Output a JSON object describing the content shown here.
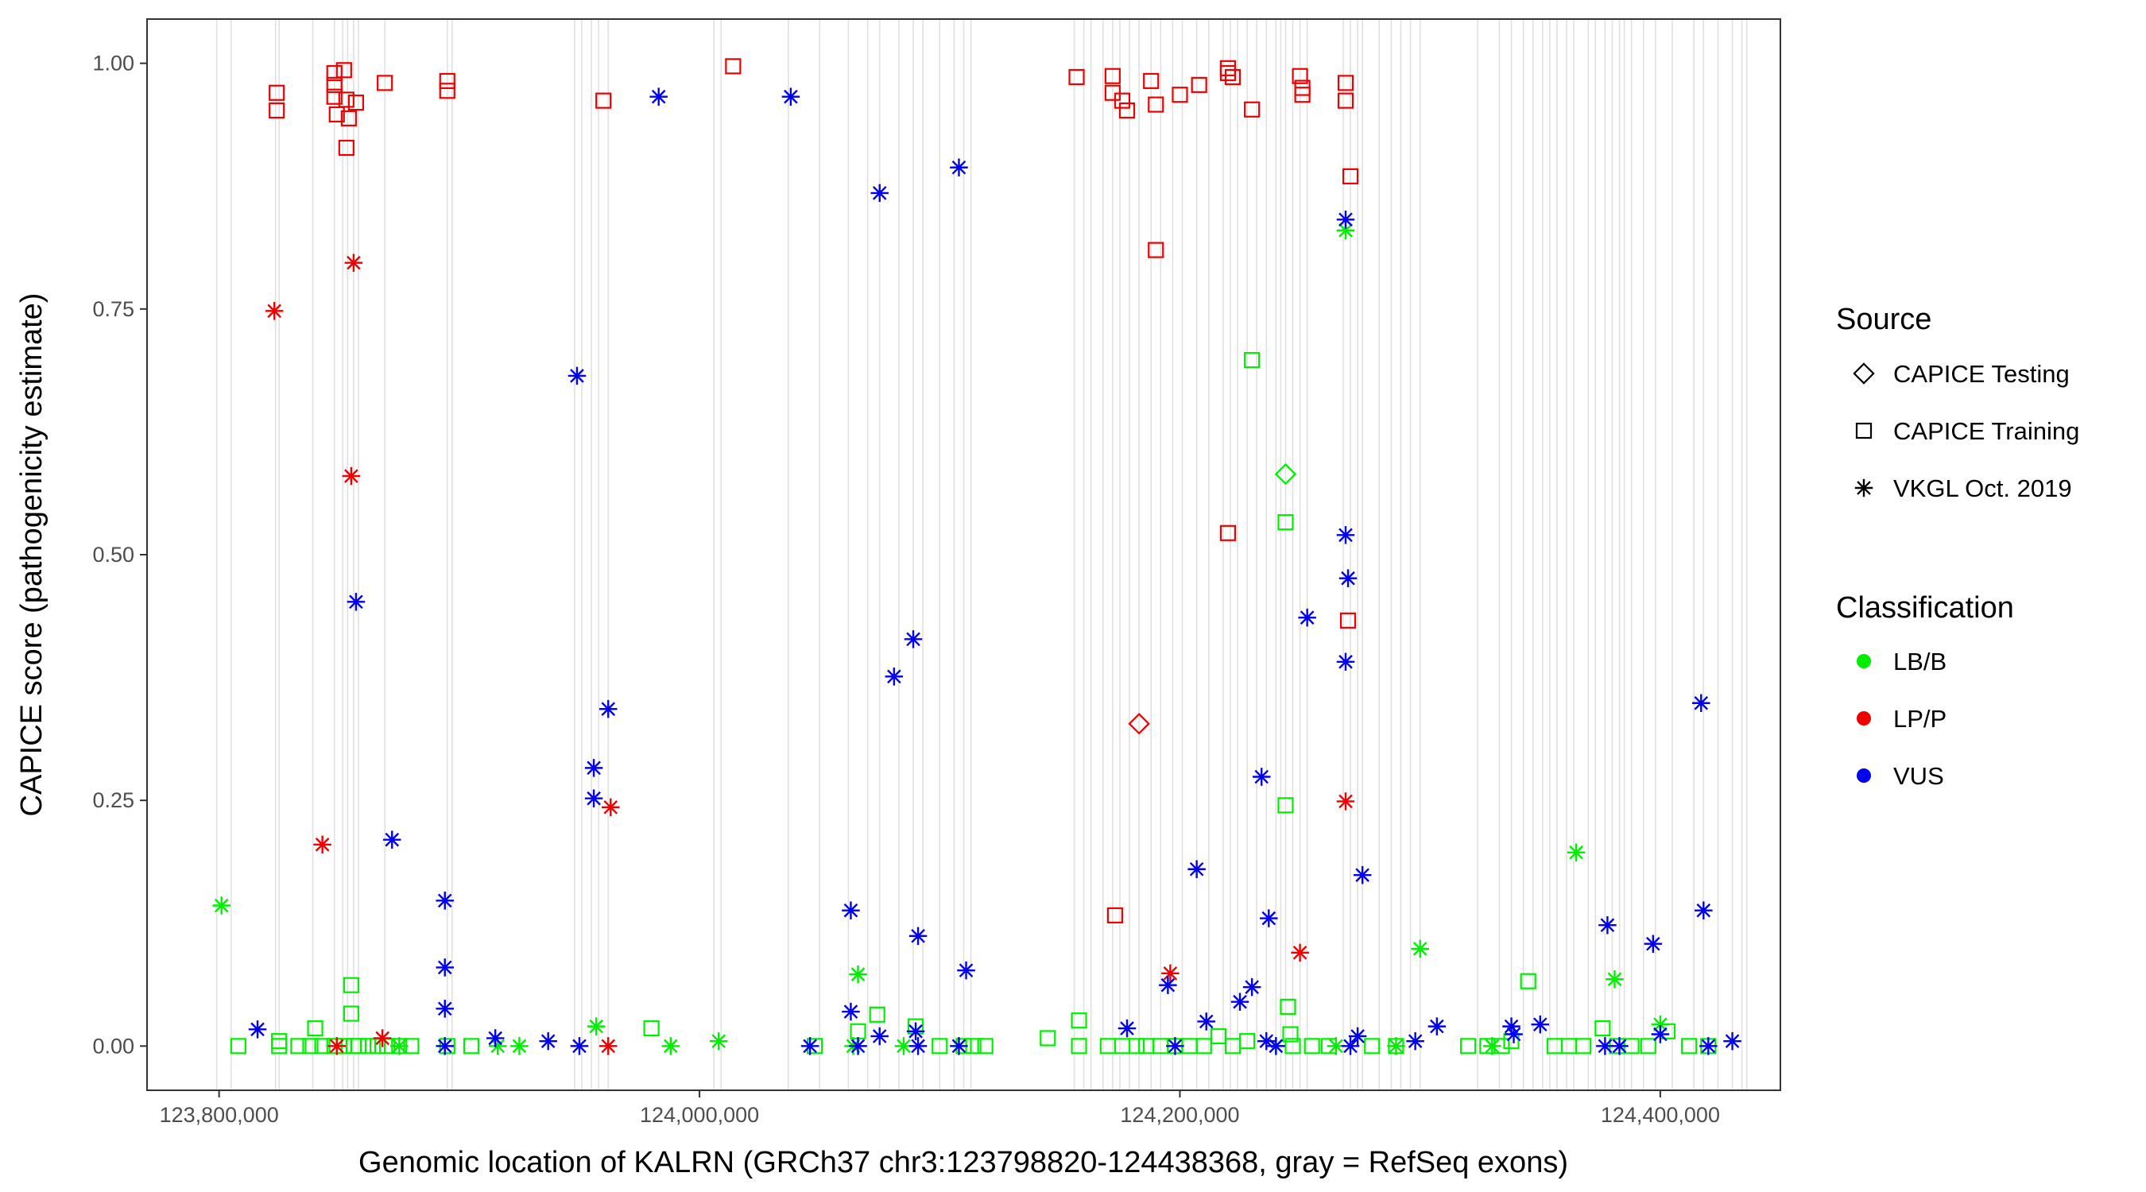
{
  "chart_data": {
    "type": "scatter",
    "title": "",
    "xlabel": "Genomic location of KALRN (GRCh37 chr3:123798820-124438368, gray = RefSeq exons)",
    "ylabel": "CAPICE score (pathogenicity estimate)",
    "xlim": [
      123770000,
      124450000
    ],
    "ylim": [
      -0.045,
      1.045
    ],
    "x_ticks": [
      123800000,
      124000000,
      124200000,
      124400000
    ],
    "x_tick_labels": [
      "123,800,000",
      "124,000,000",
      "124,200,000",
      "124,400,000"
    ],
    "y_ticks": [
      0,
      0.25,
      0.5,
      0.75,
      1.0
    ],
    "y_tick_labels": [
      "0.00",
      "0.25",
      "0.50",
      "0.75",
      "1.00"
    ],
    "grid": false,
    "exon_positions": [
      123799000,
      123805000,
      123823500,
      123825000,
      123839000,
      123848000,
      123851500,
      123853500,
      123856000,
      123858000,
      123869000,
      123895000,
      123897000,
      123948000,
      123951000,
      123955000,
      123958000,
      123962000,
      124006000,
      124009000,
      124037000,
      124050000,
      124062000,
      124070000,
      124075000,
      124083000,
      124089000,
      124093000,
      124100000,
      124106000,
      124110000,
      124113000,
      124156000,
      124160000,
      124163000,
      124168000,
      124172000,
      124175000,
      124179000,
      124183000,
      124188000,
      124192000,
      124197000,
      124201000,
      124207000,
      124212000,
      124218000,
      124221000,
      124224000,
      124228000,
      124232000,
      124236000,
      124240000,
      124242000,
      124244000,
      124247000,
      124250000,
      124253000,
      124268000,
      124271000,
      124274000,
      124276000,
      124283000,
      124288000,
      124292000,
      124296000,
      124300000,
      124324000,
      124333000,
      124338000,
      124343000,
      124347000,
      124351000,
      124354000,
      124357000,
      124361000,
      124364000,
      124370000,
      124373000,
      124377000,
      124380000,
      124383000,
      124385000,
      124388000,
      124393000,
      124398000,
      124405000,
      124414000,
      124418000,
      124424000,
      124430000,
      124434000,
      124436000
    ],
    "exon_color": "#e0e0e0",
    "legend": {
      "position": "right",
      "source_title": "Source",
      "source_items": [
        {
          "label": "CAPICE Testing",
          "shape": "diamond"
        },
        {
          "label": "CAPICE Training",
          "shape": "square"
        },
        {
          "label": "VKGL Oct. 2019",
          "shape": "asterisk"
        }
      ],
      "class_title": "Classification",
      "class_items": [
        {
          "label": "LB/B",
          "color": "#00ee00"
        },
        {
          "label": "LP/P",
          "color": "#ee0000"
        },
        {
          "label": "VUS",
          "color": "#0000ee"
        }
      ]
    },
    "series": [
      {
        "source": "CAPICE Training",
        "classification": "LP/P",
        "shape": "square",
        "color": "#ee0000",
        "points": [
          [
            123824000,
            0.97
          ],
          [
            123824000,
            0.952
          ],
          [
            123848000,
            0.99
          ],
          [
            123848000,
            0.978
          ],
          [
            123848000,
            0.966
          ],
          [
            123849000,
            0.948
          ],
          [
            123852000,
            0.993
          ],
          [
            123853000,
            0.963
          ],
          [
            123854000,
            0.944
          ],
          [
            123853000,
            0.914
          ],
          [
            123857000,
            0.96
          ],
          [
            123869000,
            0.98
          ],
          [
            123895000,
            0.982
          ],
          [
            123895000,
            0.972
          ],
          [
            123960000,
            0.962
          ],
          [
            124014000,
            0.997
          ],
          [
            124157000,
            0.986
          ],
          [
            124172000,
            0.987
          ],
          [
            124172000,
            0.97
          ],
          [
            124176000,
            0.962
          ],
          [
            124178000,
            0.952
          ],
          [
            124188000,
            0.982
          ],
          [
            124190000,
            0.958
          ],
          [
            124200000,
            0.968
          ],
          [
            124208000,
            0.978
          ],
          [
            124220000,
            0.995
          ],
          [
            124220000,
            0.99
          ],
          [
            124222000,
            0.986
          ],
          [
            124230000,
            0.953
          ],
          [
            124250000,
            0.987
          ],
          [
            124251000,
            0.975
          ],
          [
            124251000,
            0.968
          ],
          [
            124269000,
            0.98
          ],
          [
            124269000,
            0.962
          ],
          [
            124271000,
            0.885
          ],
          [
            124190000,
            0.81
          ],
          [
            124220000,
            0.522
          ],
          [
            124270000,
            0.433
          ],
          [
            124173000,
            0.133
          ]
        ]
      },
      {
        "source": "CAPICE Training",
        "classification": "LB/B",
        "shape": "square",
        "color": "#00ee00",
        "points": [
          [
            123808000,
            0.0
          ],
          [
            123825000,
            0.0
          ],
          [
            123825000,
            0.005
          ],
          [
            123833000,
            0.0
          ],
          [
            123838000,
            0.0
          ],
          [
            123840000,
            0.018
          ],
          [
            123843000,
            0.0
          ],
          [
            123848000,
            0.0
          ],
          [
            123852000,
            0.0
          ],
          [
            123855000,
            0.062
          ],
          [
            123855000,
            0.033
          ],
          [
            123856000,
            0.0
          ],
          [
            123858000,
            0.0
          ],
          [
            123862000,
            0.0
          ],
          [
            123866000,
            0.0
          ],
          [
            123870000,
            0.0
          ],
          [
            123875000,
            0.0
          ],
          [
            123880000,
            0.0
          ],
          [
            123895000,
            0.0
          ],
          [
            123905000,
            0.0
          ],
          [
            123980000,
            0.018
          ],
          [
            124048000,
            0.0
          ],
          [
            124066000,
            0.015
          ],
          [
            124074000,
            0.032
          ],
          [
            124090000,
            0.02
          ],
          [
            124100000,
            0.0
          ],
          [
            124110000,
            0.0
          ],
          [
            124114000,
            0.0
          ],
          [
            124119000,
            0.0
          ],
          [
            124145000,
            0.008
          ],
          [
            124158000,
            0.026
          ],
          [
            124158000,
            0.0
          ],
          [
            124170000,
            0.0
          ],
          [
            124176000,
            0.0
          ],
          [
            124182000,
            0.0
          ],
          [
            124186000,
            0.0
          ],
          [
            124192000,
            0.0
          ],
          [
            124198000,
            0.0
          ],
          [
            124204000,
            0.0
          ],
          [
            124210000,
            0.0
          ],
          [
            124216000,
            0.01
          ],
          [
            124222000,
            0.0
          ],
          [
            124228000,
            0.005
          ],
          [
            124230000,
            0.698
          ],
          [
            124244000,
            0.533
          ],
          [
            124244000,
            0.245
          ],
          [
            124245000,
            0.04
          ],
          [
            124246000,
            0.012
          ],
          [
            124247000,
            0.0
          ],
          [
            124255000,
            0.0
          ],
          [
            124262000,
            0.0
          ],
          [
            124280000,
            0.0
          ],
          [
            124290000,
            0.0
          ],
          [
            124320000,
            0.0
          ],
          [
            124328000,
            0.0
          ],
          [
            124334000,
            0.0
          ],
          [
            124338000,
            0.005
          ],
          [
            124345000,
            0.066
          ],
          [
            124356000,
            0.0
          ],
          [
            124362000,
            0.0
          ],
          [
            124368000,
            0.0
          ],
          [
            124376000,
            0.018
          ],
          [
            124382000,
            0.0
          ],
          [
            124388000,
            0.0
          ],
          [
            124395000,
            0.0
          ],
          [
            124403000,
            0.015
          ],
          [
            124412000,
            0.0
          ],
          [
            124420000,
            0.0
          ]
        ]
      },
      {
        "source": "CAPICE Testing",
        "classification": "LB/B",
        "shape": "diamond",
        "color": "#00ee00",
        "points": [
          [
            124244000,
            0.582
          ]
        ]
      },
      {
        "source": "CAPICE Testing",
        "classification": "LP/P",
        "shape": "diamond",
        "color": "#ee0000",
        "points": [
          [
            124183000,
            0.328
          ]
        ]
      },
      {
        "source": "VKGL Oct. 2019",
        "classification": "LP/P",
        "shape": "asterisk",
        "color": "#ee0000",
        "points": [
          [
            123823000,
            0.748
          ],
          [
            123856000,
            0.797
          ],
          [
            123855000,
            0.58
          ],
          [
            123843000,
            0.205
          ],
          [
            123963000,
            0.243
          ],
          [
            123849000,
            0.0
          ],
          [
            123868000,
            0.008
          ],
          [
            123962000,
            0.0
          ],
          [
            124196000,
            0.074
          ],
          [
            124250000,
            0.095
          ],
          [
            124269000,
            0.249
          ]
        ]
      },
      {
        "source": "VKGL Oct. 2019",
        "classification": "LB/B",
        "shape": "asterisk",
        "color": "#00ee00",
        "points": [
          [
            123801000,
            0.143
          ],
          [
            123957000,
            0.02
          ],
          [
            123875000,
            0.0
          ],
          [
            123916000,
            0.0
          ],
          [
            123925000,
            0.0
          ],
          [
            123988000,
            0.0
          ],
          [
            124008000,
            0.005
          ],
          [
            124064000,
            0.0
          ],
          [
            124066000,
            0.073
          ],
          [
            124269000,
            0.83
          ],
          [
            124300000,
            0.099
          ],
          [
            124365000,
            0.197
          ],
          [
            124381000,
            0.068
          ],
          [
            124400000,
            0.022
          ],
          [
            124085000,
            0.0
          ],
          [
            124240000,
            0.0
          ],
          [
            124265000,
            0.0
          ],
          [
            124290000,
            0.0
          ],
          [
            124330000,
            0.0
          ]
        ]
      },
      {
        "source": "VKGL Oct. 2019",
        "classification": "VUS",
        "shape": "asterisk",
        "color": "#0000ee",
        "points": [
          [
            123816000,
            0.017
          ],
          [
            123857000,
            0.452
          ],
          [
            123872000,
            0.21
          ],
          [
            123894000,
            0.148
          ],
          [
            123894000,
            0.08
          ],
          [
            123894000,
            0.038
          ],
          [
            123894000,
            0.0
          ],
          [
            123915000,
            0.008
          ],
          [
            123937000,
            0.005
          ],
          [
            123949000,
            0.682
          ],
          [
            123956000,
            0.283
          ],
          [
            123956000,
            0.252
          ],
          [
            123962000,
            0.343
          ],
          [
            123950000,
            0.0
          ],
          [
            123983000,
            0.966
          ],
          [
            124038000,
            0.966
          ],
          [
            124046000,
            0.0
          ],
          [
            124063000,
            0.138
          ],
          [
            124063000,
            0.035
          ],
          [
            124066000,
            0.0
          ],
          [
            124075000,
            0.868
          ],
          [
            124075000,
            0.01
          ],
          [
            124081000,
            0.376
          ],
          [
            124089000,
            0.414
          ],
          [
            124091000,
            0.112
          ],
          [
            124090000,
            0.015
          ],
          [
            124091000,
            0.0
          ],
          [
            124108000,
            0.894
          ],
          [
            124111000,
            0.077
          ],
          [
            124108000,
            0.0
          ],
          [
            124178000,
            0.018
          ],
          [
            124195000,
            0.062
          ],
          [
            124198000,
            0.0
          ],
          [
            124207000,
            0.18
          ],
          [
            124211000,
            0.025
          ],
          [
            124225000,
            0.045
          ],
          [
            124230000,
            0.06
          ],
          [
            124234000,
            0.274
          ],
          [
            124237000,
            0.13
          ],
          [
            124236000,
            0.005
          ],
          [
            124240000,
            0.0
          ],
          [
            124253000,
            0.436
          ],
          [
            124269000,
            0.841
          ],
          [
            124269000,
            0.52
          ],
          [
            124270000,
            0.476
          ],
          [
            124269000,
            0.391
          ],
          [
            124276000,
            0.174
          ],
          [
            124274000,
            0.01
          ],
          [
            124271000,
            0.0
          ],
          [
            124298000,
            0.005
          ],
          [
            124307000,
            0.02
          ],
          [
            124338000,
            0.02
          ],
          [
            124339000,
            0.012
          ],
          [
            124350000,
            0.022
          ],
          [
            124378000,
            0.123
          ],
          [
            124377000,
            0.0
          ],
          [
            124383000,
            0.0
          ],
          [
            124397000,
            0.104
          ],
          [
            124400000,
            0.012
          ],
          [
            124417000,
            0.349
          ],
          [
            124418000,
            0.138
          ],
          [
            124420000,
            0.0
          ],
          [
            124430000,
            0.005
          ]
        ]
      }
    ]
  }
}
